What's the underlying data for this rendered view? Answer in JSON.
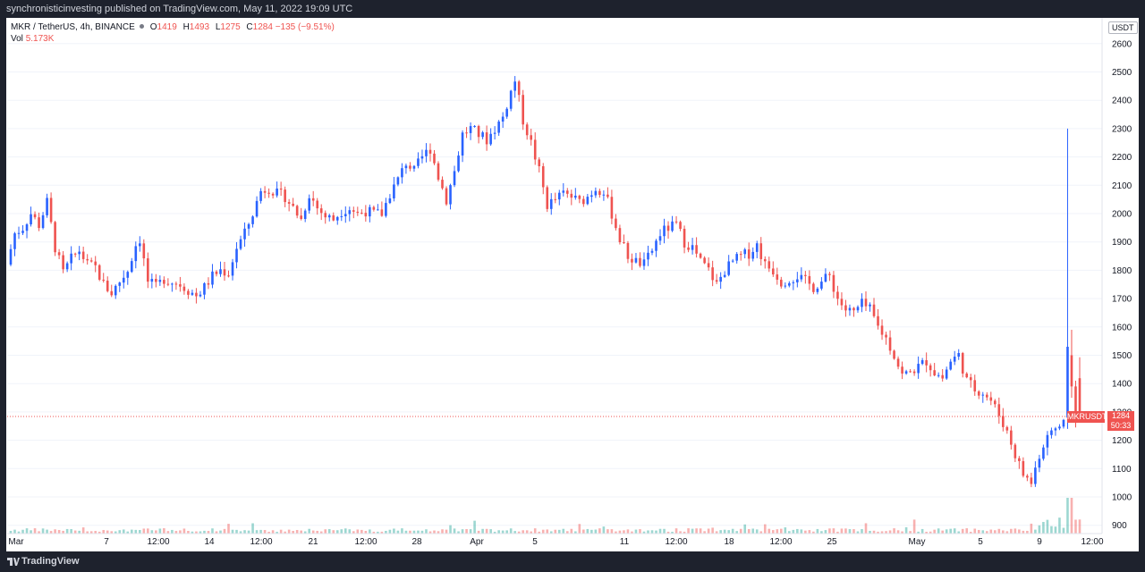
{
  "header": {
    "attribution": "synchronisticinvesting published on TradingView.com, May 11, 2022 19:09 UTC"
  },
  "legend": {
    "symbol": "MKR / TetherUS, 4h, BINANCE",
    "open_label": "O",
    "open": "1419",
    "high_label": "H",
    "high": "1493",
    "low_label": "L",
    "low": "1275",
    "close_label": "C",
    "close": "1284",
    "change": "−135 (−9.51%)",
    "vol_label": "Vol",
    "vol": "5.173K"
  },
  "price_scale": {
    "unit": "USDT"
  },
  "last_price": {
    "symbol": "MKRUSDT",
    "price": "1284",
    "countdown": "50:33"
  },
  "footer": {
    "brand": "TradingView"
  },
  "colors": {
    "up": "#2962ff",
    "down": "#ef5350",
    "vol_up": "#26a69a",
    "vol_down": "#ef5350",
    "grid": "#f0f3fa",
    "axis_text": "#131722"
  },
  "chart_data": {
    "type": "candlestick",
    "interval": "4h",
    "ylim": [
      870,
      2650
    ],
    "yticks": [
      900,
      1000,
      1100,
      1200,
      1300,
      1400,
      1500,
      1600,
      1700,
      1800,
      1900,
      2000,
      2100,
      2200,
      2300,
      2400,
      2500,
      2600
    ],
    "xticks": [
      "Mar",
      "7",
      "12:00",
      "14",
      "12:00",
      "21",
      "12:00",
      "28",
      "Apr",
      "5",
      "11",
      "12:00",
      "18",
      "12:00",
      "25",
      "May",
      "5",
      "9",
      "12:00"
    ],
    "price_path": [
      [
        0,
        1820
      ],
      [
        2,
        1930
      ],
      [
        4,
        1950
      ],
      [
        6,
        2000
      ],
      [
        8,
        1960
      ],
      [
        10,
        2040
      ],
      [
        12,
        1880
      ],
      [
        14,
        1790
      ],
      [
        16,
        1840
      ],
      [
        18,
        1870
      ],
      [
        20,
        1820
      ],
      [
        22,
        1810
      ],
      [
        24,
        1750
      ],
      [
        26,
        1720
      ],
      [
        28,
        1760
      ],
      [
        30,
        1800
      ],
      [
        32,
        1890
      ],
      [
        33,
        1910
      ],
      [
        35,
        1760
      ],
      [
        37,
        1740
      ],
      [
        39,
        1770
      ],
      [
        41,
        1760
      ],
      [
        43,
        1750
      ],
      [
        45,
        1730
      ],
      [
        47,
        1710
      ],
      [
        49,
        1740
      ],
      [
        51,
        1780
      ],
      [
        53,
        1800
      ],
      [
        55,
        1790
      ],
      [
        57,
        1880
      ],
      [
        59,
        1930
      ],
      [
        61,
        2000
      ],
      [
        63,
        2080
      ],
      [
        65,
        2090
      ],
      [
        67,
        2070
      ],
      [
        69,
        2060
      ],
      [
        71,
        2020
      ],
      [
        73,
        1980
      ],
      [
        75,
        2070
      ],
      [
        77,
        2020
      ],
      [
        79,
        1990
      ],
      [
        81,
        1980
      ],
      [
        83,
        2010
      ],
      [
        85,
        2020
      ],
      [
        87,
        2000
      ],
      [
        89,
        2010
      ],
      [
        91,
        2000
      ],
      [
        93,
        2000
      ],
      [
        95,
        2070
      ],
      [
        97,
        2120
      ],
      [
        99,
        2180
      ],
      [
        101,
        2150
      ],
      [
        103,
        2200
      ],
      [
        105,
        2230
      ],
      [
        107,
        2130
      ],
      [
        109,
        2050
      ],
      [
        111,
        2150
      ],
      [
        113,
        2280
      ],
      [
        115,
        2300
      ],
      [
        117,
        2280
      ],
      [
        119,
        2260
      ],
      [
        121,
        2300
      ],
      [
        123,
        2340
      ],
      [
        125,
        2430
      ],
      [
        126,
        2470
      ],
      [
        128,
        2330
      ],
      [
        130,
        2250
      ],
      [
        132,
        2150
      ],
      [
        134,
        2030
      ],
      [
        136,
        2050
      ],
      [
        138,
        2070
      ],
      [
        140,
        2060
      ],
      [
        142,
        2040
      ],
      [
        144,
        2060
      ],
      [
        146,
        2090
      ],
      [
        148,
        2080
      ],
      [
        150,
        2000
      ],
      [
        152,
        1910
      ],
      [
        154,
        1850
      ],
      [
        156,
        1830
      ],
      [
        158,
        1820
      ],
      [
        160,
        1870
      ],
      [
        162,
        1930
      ],
      [
        164,
        1950
      ],
      [
        166,
        1960
      ],
      [
        168,
        1900
      ],
      [
        170,
        1880
      ],
      [
        172,
        1830
      ],
      [
        174,
        1800
      ],
      [
        176,
        1750
      ],
      [
        178,
        1800
      ],
      [
        180,
        1830
      ],
      [
        182,
        1850
      ],
      [
        184,
        1860
      ],
      [
        186,
        1890
      ],
      [
        188,
        1820
      ],
      [
        190,
        1800
      ],
      [
        192,
        1760
      ],
      [
        194,
        1770
      ],
      [
        196,
        1780
      ],
      [
        198,
        1760
      ],
      [
        200,
        1740
      ],
      [
        202,
        1760
      ],
      [
        204,
        1780
      ],
      [
        206,
        1700
      ],
      [
        208,
        1660
      ],
      [
        210,
        1650
      ],
      [
        212,
        1680
      ],
      [
        214,
        1660
      ],
      [
        216,
        1600
      ],
      [
        218,
        1560
      ],
      [
        220,
        1500
      ],
      [
        222,
        1430
      ],
      [
        224,
        1440
      ],
      [
        226,
        1460
      ],
      [
        228,
        1480
      ],
      [
        230,
        1440
      ],
      [
        232,
        1420
      ],
      [
        234,
        1480
      ],
      [
        236,
        1500
      ],
      [
        238,
        1410
      ],
      [
        240,
        1380
      ],
      [
        242,
        1370
      ],
      [
        244,
        1340
      ],
      [
        246,
        1290
      ],
      [
        248,
        1230
      ],
      [
        250,
        1150
      ],
      [
        252,
        1080
      ],
      [
        254,
        1050
      ],
      [
        256,
        1150
      ],
      [
        258,
        1200
      ],
      [
        260,
        1240
      ],
      [
        262,
        1270
      ],
      [
        263,
        1500
      ],
      [
        265,
        1284
      ]
    ],
    "spikes": {
      "262": {
        "h": 2300,
        "o": 1280,
        "c": 1530
      },
      "263": {
        "h": 1590,
        "o": 1500,
        "c": 1390
      }
    },
    "volume_ylim": [
      0,
      40
    ]
  }
}
